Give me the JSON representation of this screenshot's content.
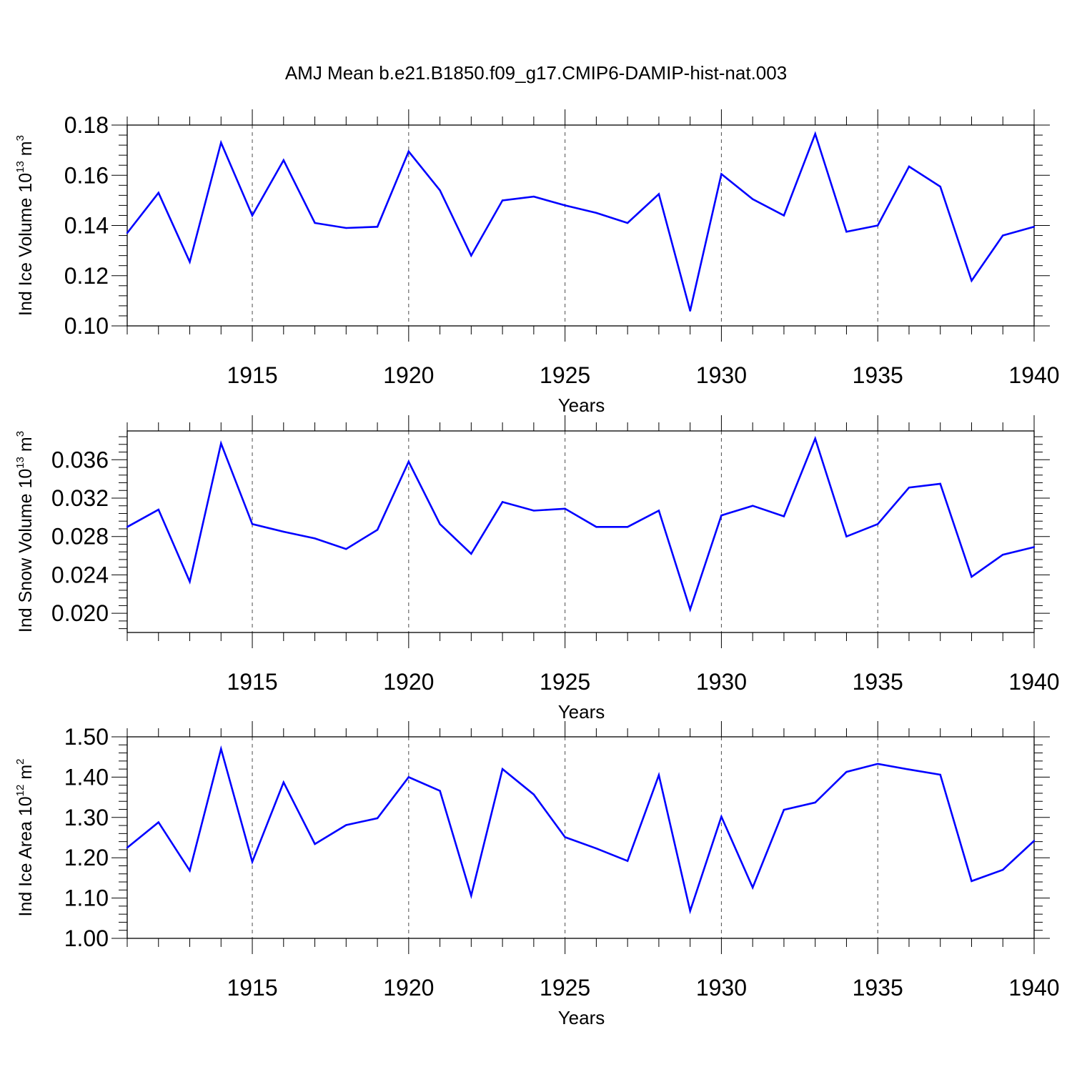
{
  "title": "AMJ Mean b.e21.B1850.f09_g17.CMIP6-DAMIP-hist-nat.003",
  "colors": {
    "line": "#0000ff",
    "axis": "#000000",
    "grid": "#000000"
  },
  "chart_data": [
    {
      "type": "line",
      "ylabel": {
        "text": "Ind Ice Volume 10",
        "exp": "13",
        "unit": " m",
        "unit_exp": "3"
      },
      "xlabel": "Years",
      "xlim": [
        1911,
        1940
      ],
      "ylim": [
        0.1,
        0.18
      ],
      "xticks": [
        1915,
        1920,
        1925,
        1930,
        1935,
        1940
      ],
      "xtick_labels": [
        "1915",
        "1920",
        "1925",
        "1930",
        "1935",
        "1940"
      ],
      "yticks": [
        0.1,
        0.12,
        0.14,
        0.16,
        0.18
      ],
      "ytick_labels": [
        "0.10",
        "0.12",
        "0.14",
        "0.16",
        "0.18"
      ],
      "grid": "vertical dashed at major x ticks",
      "x": [
        1911,
        1912,
        1913,
        1914,
        1915,
        1916,
        1917,
        1918,
        1919,
        1920,
        1921,
        1922,
        1923,
        1924,
        1925,
        1926,
        1927,
        1928,
        1929,
        1930,
        1931,
        1932,
        1933,
        1934,
        1935,
        1936,
        1937,
        1938,
        1939,
        1940
      ],
      "values": [
        0.137,
        0.153,
        0.1255,
        0.173,
        0.144,
        0.166,
        0.141,
        0.139,
        0.1395,
        0.1695,
        0.154,
        0.128,
        0.15,
        0.1515,
        0.148,
        0.145,
        0.141,
        0.1525,
        0.106,
        0.1605,
        0.1505,
        0.144,
        0.1765,
        0.1375,
        0.14,
        0.1635,
        0.1555,
        0.118,
        0.136,
        0.1395
      ]
    },
    {
      "type": "line",
      "ylabel": {
        "text": "Ind Snow Volume 10",
        "exp": "13",
        "unit": " m",
        "unit_exp": "3"
      },
      "xlabel": "Years",
      "xlim": [
        1911,
        1940
      ],
      "ylim": [
        0.018,
        0.039
      ],
      "xticks": [
        1915,
        1920,
        1925,
        1930,
        1935,
        1940
      ],
      "xtick_labels": [
        "1915",
        "1920",
        "1925",
        "1930",
        "1935",
        "1940"
      ],
      "yticks": [
        0.02,
        0.024,
        0.028,
        0.032,
        0.036
      ],
      "ytick_labels": [
        "0.020",
        "0.024",
        "0.028",
        "0.032",
        "0.036"
      ],
      "grid": "vertical dashed at major x ticks",
      "x": [
        1911,
        1912,
        1913,
        1914,
        1915,
        1916,
        1917,
        1918,
        1919,
        1920,
        1921,
        1922,
        1923,
        1924,
        1925,
        1926,
        1927,
        1928,
        1929,
        1930,
        1931,
        1932,
        1933,
        1934,
        1935,
        1936,
        1937,
        1938,
        1939,
        1940
      ],
      "values": [
        0.029,
        0.0308,
        0.0233,
        0.0377,
        0.0293,
        0.0285,
        0.0278,
        0.0267,
        0.0287,
        0.0358,
        0.0293,
        0.0262,
        0.0316,
        0.0307,
        0.0309,
        0.029,
        0.029,
        0.0307,
        0.0204,
        0.0302,
        0.0312,
        0.0301,
        0.0382,
        0.028,
        0.0293,
        0.0331,
        0.0335,
        0.0238,
        0.0261,
        0.0269
      ]
    },
    {
      "type": "line",
      "ylabel": {
        "text": "Ind Ice Area 10",
        "exp": "12",
        "unit": " m",
        "unit_exp": "2"
      },
      "xlabel": "Years",
      "xlim": [
        1911,
        1940
      ],
      "ylim": [
        1.0,
        1.5
      ],
      "xticks": [
        1915,
        1920,
        1925,
        1930,
        1935,
        1940
      ],
      "xtick_labels": [
        "1915",
        "1920",
        "1925",
        "1930",
        "1935",
        "1940"
      ],
      "yticks": [
        1.0,
        1.1,
        1.2,
        1.3,
        1.4,
        1.5
      ],
      "ytick_labels": [
        "1.00",
        "1.10",
        "1.20",
        "1.30",
        "1.40",
        "1.50"
      ],
      "grid": "vertical dashed at major x ticks",
      "x": [
        1911,
        1912,
        1913,
        1914,
        1915,
        1916,
        1917,
        1918,
        1919,
        1920,
        1921,
        1922,
        1923,
        1924,
        1925,
        1926,
        1927,
        1928,
        1929,
        1930,
        1931,
        1932,
        1933,
        1934,
        1935,
        1936,
        1937,
        1938,
        1939,
        1940
      ],
      "values": [
        1.225,
        1.288,
        1.168,
        1.47,
        1.19,
        1.387,
        1.234,
        1.281,
        1.298,
        1.4,
        1.366,
        1.106,
        1.42,
        1.357,
        1.251,
        1.223,
        1.192,
        1.405,
        1.068,
        1.302,
        1.126,
        1.319,
        1.337,
        1.413,
        1.433,
        1.419,
        1.406,
        1.142,
        1.17,
        1.242
      ]
    }
  ]
}
